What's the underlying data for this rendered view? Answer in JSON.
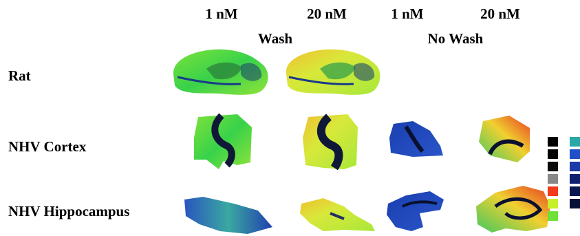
{
  "columns": [
    "1 nM",
    "20 nM",
    "1 nM",
    "20 nM"
  ],
  "groups": [
    "Wash",
    "No Wash"
  ],
  "rows": [
    "Rat",
    "NHV Cortex",
    "NHV Hippocampus"
  ]
}
